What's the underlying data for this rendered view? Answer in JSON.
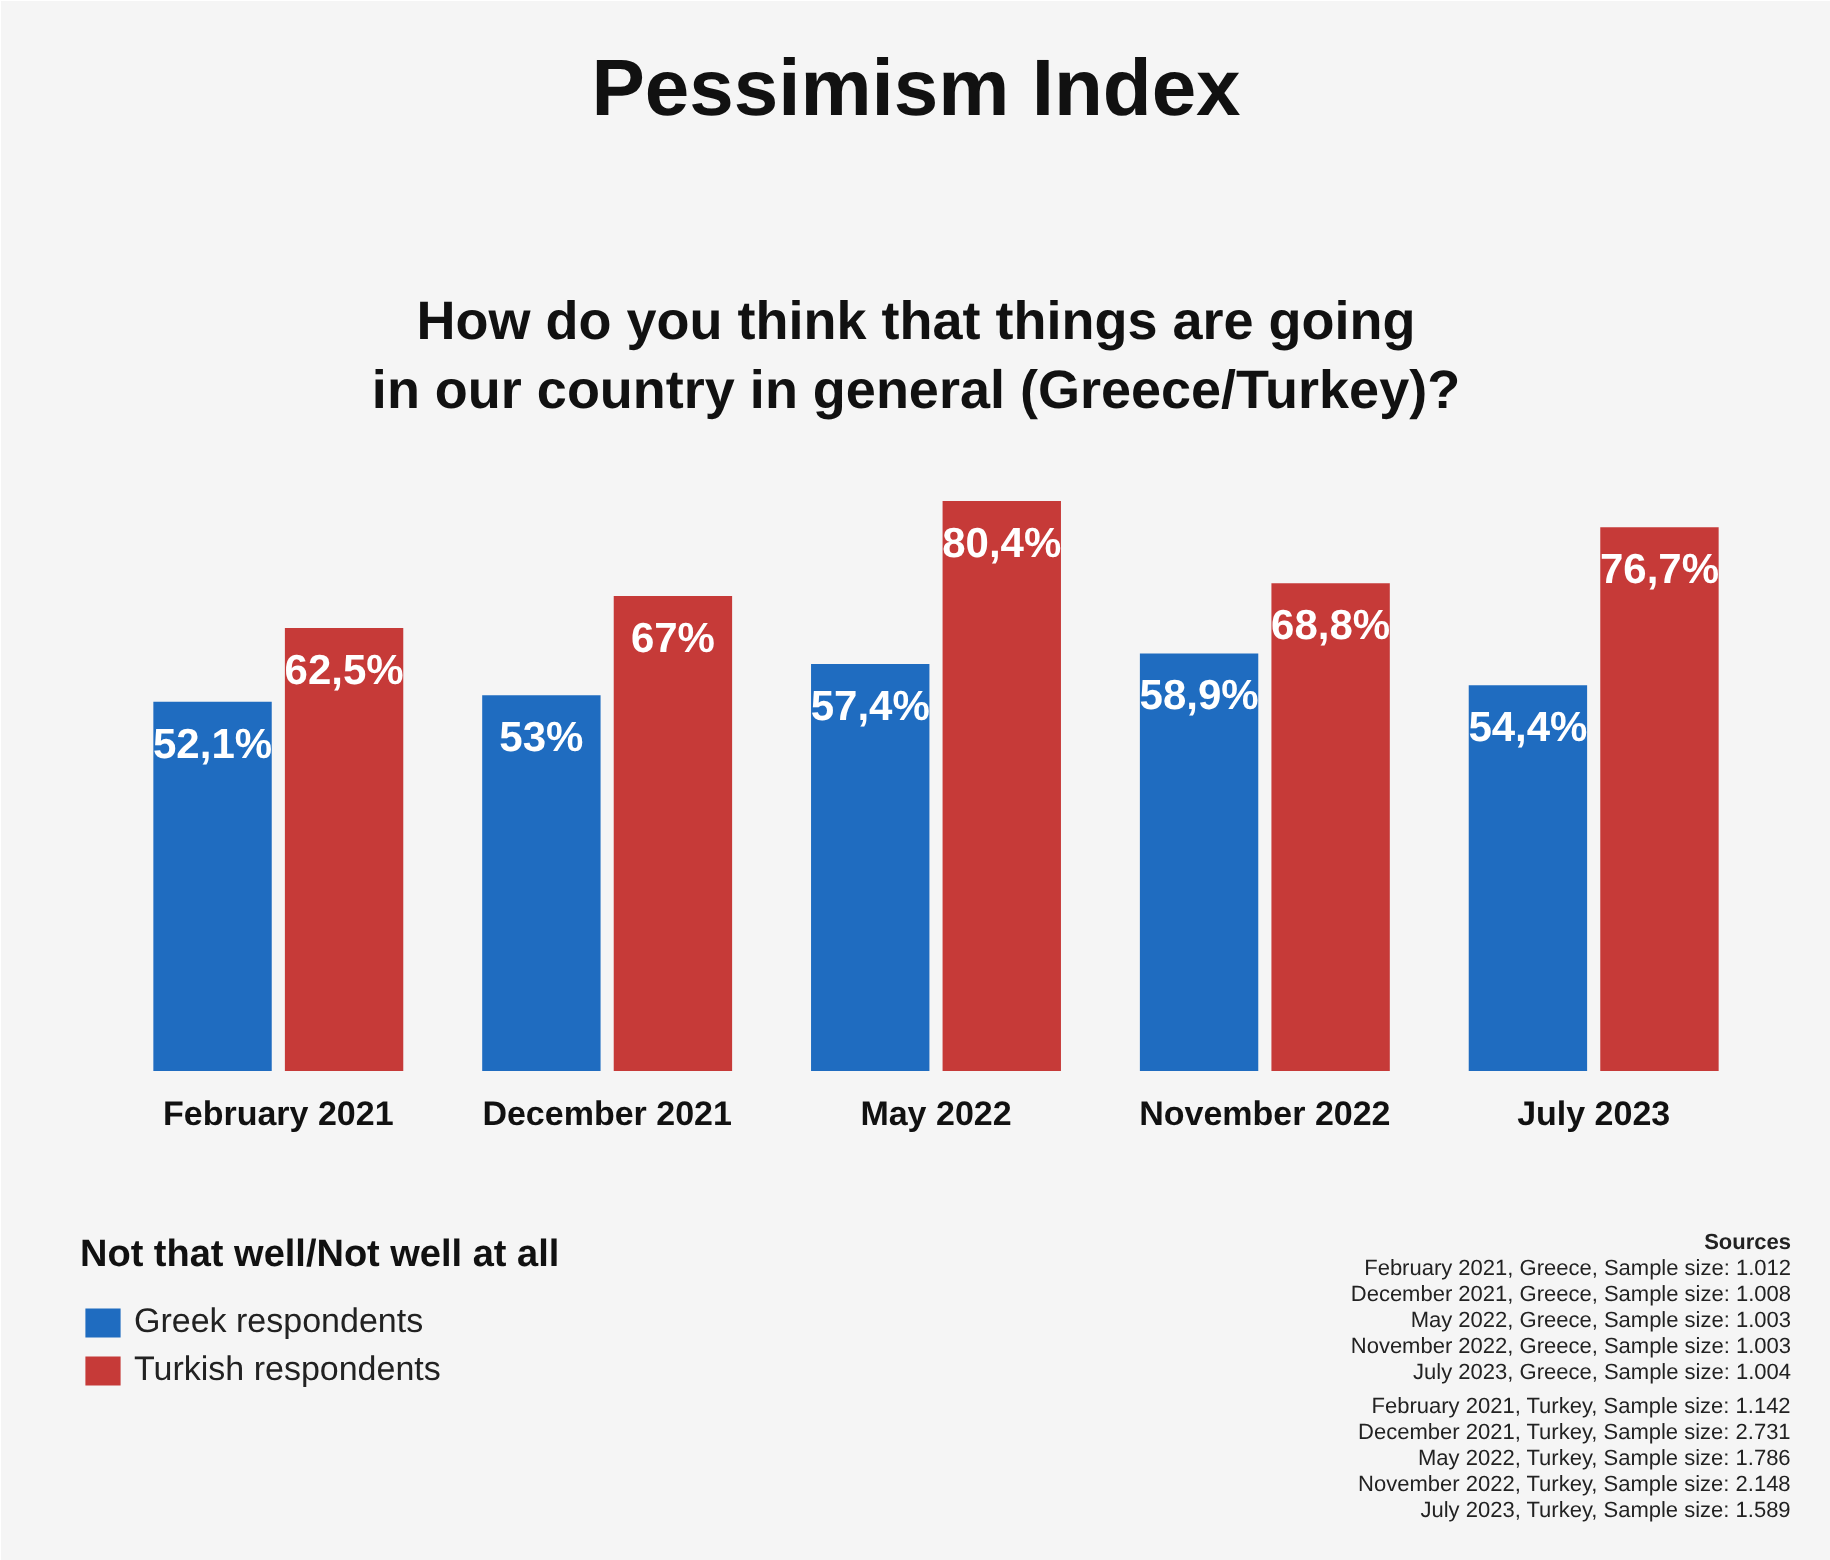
{
  "chart_data": {
    "type": "bar",
    "title": "Pessimism Index",
    "subtitle": "How do you think that things are going\nin our country in general (Greece/Turkey)?",
    "categories": [
      "February 2021",
      "December 2021",
      "May 2022",
      "November 2022",
      "July 2023"
    ],
    "series": [
      {
        "name": "Greek respondents",
        "color": "#1f6cc0",
        "values": [
          52.1,
          53,
          57.4,
          58.9,
          54.4
        ],
        "value_labels": [
          "52,1%",
          "53%",
          "57,4%",
          "58,9%",
          "54,4%"
        ]
      },
      {
        "name": "Turkish respondents",
        "color": "#c63a38",
        "values": [
          62.5,
          67,
          80.4,
          68.8,
          76.7
        ],
        "value_labels": [
          "62,5%",
          "67%",
          "80,4%",
          "68,8%",
          "76,7%"
        ]
      }
    ],
    "tick_labels": "x",
    "legend": "bottom left",
    "legend_title": "Not that well/Not well at all",
    "annotations": [
      "Sources",
      "February 2021, Greece, Sample size: 1.012",
      "December 2021, Greece, Sample size: 1.008",
      "May 2022, Greece, Sample size: 1.003",
      "November 2022, Greece, Sample size: 1.003",
      "July 2023, Greece, Sample size: 1.004",
      "February 2021, Turkey, Sample size: 1.142",
      "December 2021, Turkey, Sample size: 2.731",
      "May 2022, Turkey, Sample size: 1.786",
      "November 2022, Turkey, Sample size: 2.148",
      "July 2023, Turkey, Sample size: 1.589"
    ]
  }
}
